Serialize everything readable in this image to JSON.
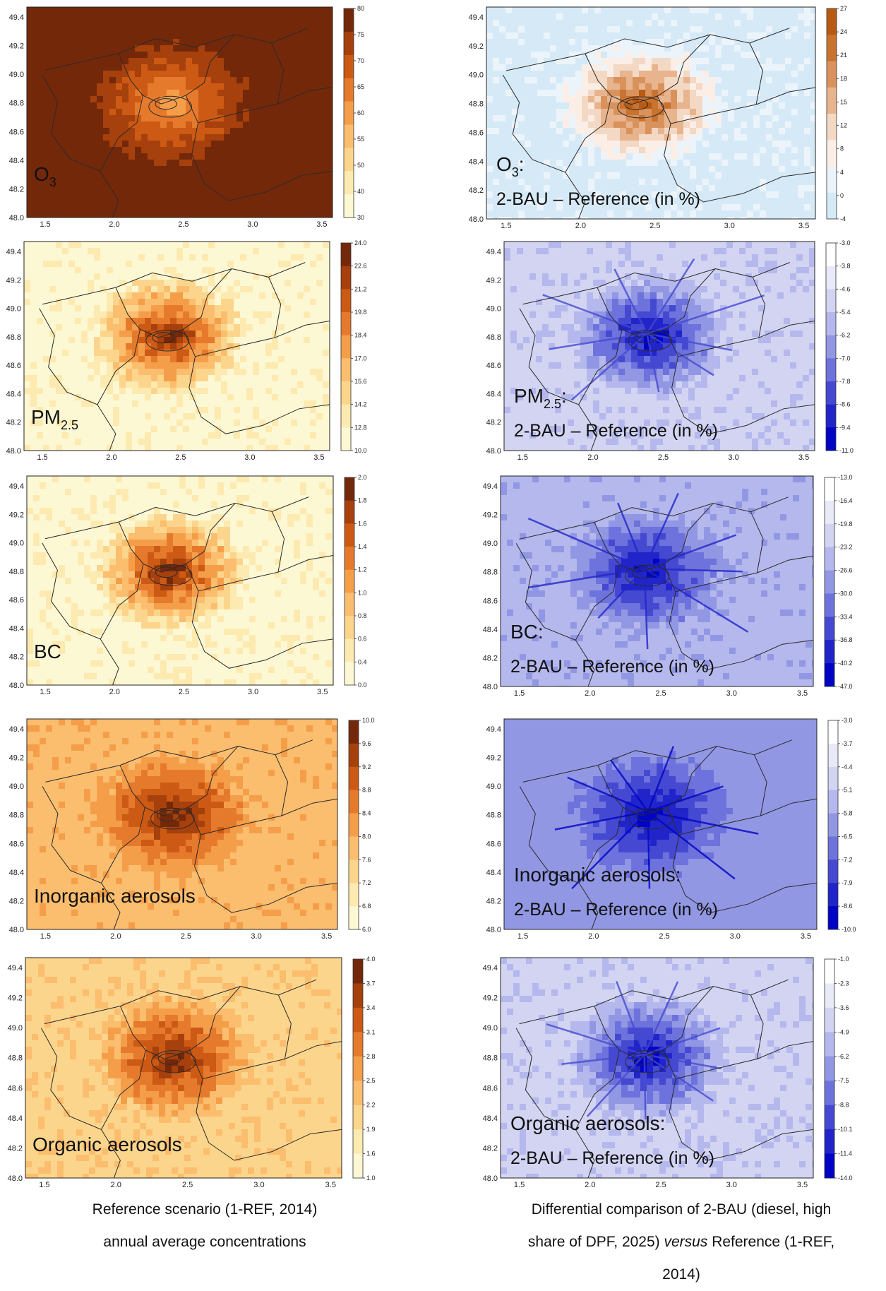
{
  "colors": {
    "oranges": [
      "#fdf8d4",
      "#fdeab0",
      "#fcd58c",
      "#fbbd6e",
      "#f59e4a",
      "#e67a2c",
      "#cc5a14",
      "#a6400c",
      "#74280a"
    ],
    "blues": [
      "#ffffff",
      "#e9eaf8",
      "#d2d4f2",
      "#b5b8ec",
      "#9297e4",
      "#6d72dc",
      "#4549d2",
      "#2125c9",
      "#0004c4"
    ],
    "o3diff": [
      "#d6e9f7",
      "#ecf4fb",
      "#fbeee6",
      "#f3d8c4",
      "#e7b48d",
      "#d9925c",
      "#c8732f",
      "#b85a12"
    ],
    "map_border": "#2a2a2a",
    "label_yellow": "#f2e400"
  },
  "panels": [
    {
      "id": "o3-ref",
      "ramp": "oranges",
      "base": 8,
      "hot": "light",
      "label": [
        "O",
        "3"
      ],
      "label_style": "sub_yellow",
      "xticks": [
        "1.5",
        "2.0",
        "2.5",
        "3.0",
        "3.5"
      ],
      "yticks": [
        "49.4",
        "49.2",
        "49.0",
        "48.8",
        "48.6",
        "48.4",
        "48.2",
        "48.0"
      ],
      "cbar_ticks": [
        "80",
        "75",
        "70",
        "65",
        "60",
        "55",
        "50",
        "40",
        "30"
      ],
      "cbar_dir": "dark_top"
    },
    {
      "id": "o3-diff",
      "ramp": "o3diff",
      "base": 0,
      "hot": "dark",
      "label": [
        "O",
        "3",
        ":"
      ],
      "label2": "2-BAU – Reference (in %)",
      "label_style": "sub_black",
      "xticks": [
        "1.5",
        "2.0",
        "2.5",
        "3.0",
        "3.5"
      ],
      "yticks": [
        "49.4",
        "49.2",
        "49.0",
        "48.8",
        "48.6",
        "48.4",
        "48.2",
        "48.0"
      ],
      "cbar_ticks": [
        "27",
        "24",
        "21",
        "18",
        "15",
        "12",
        "8",
        "4",
        "0",
        "-4"
      ],
      "cbar_dir": "dark_top"
    },
    {
      "id": "pm25-ref",
      "ramp": "oranges",
      "base": 0,
      "hot": "dark",
      "label": [
        "PM",
        "2.5"
      ],
      "label_style": "sub_black",
      "xticks": [
        "1.5",
        "2.0",
        "2.5",
        "3.0",
        "3.5"
      ],
      "yticks": [
        "49.4",
        "49.2",
        "49.0",
        "48.8",
        "48.6",
        "48.4",
        "48.2",
        "48.0"
      ],
      "cbar_ticks": [
        "24.0",
        "22.6",
        "21.2",
        "19.8",
        "18.4",
        "17.0",
        "15.6",
        "14.2",
        "12.8",
        "10.0"
      ],
      "cbar_dir": "dark_top"
    },
    {
      "id": "pm25-diff",
      "ramp": "blues",
      "base": 2,
      "hot": "dark",
      "label": [
        "PM",
        "2.5",
        ":"
      ],
      "label2": "2-BAU – Reference (in %)",
      "label_style": "sub_black",
      "xticks": [
        "1.5",
        "2.0",
        "2.5",
        "3.0",
        "3.5"
      ],
      "yticks": [
        "49.4",
        "49.2",
        "49.0",
        "48.8",
        "48.6",
        "48.4",
        "48.2",
        "48.0"
      ],
      "cbar_ticks": [
        "-3.0",
        "-3.8",
        "-4.6",
        "-5.4",
        "-6.2",
        "-7.0",
        "-7.8",
        "-8.6",
        "-9.4",
        "-11.0"
      ],
      "cbar_dir": "light_top"
    },
    {
      "id": "bc-ref",
      "ramp": "oranges",
      "base": 0,
      "hot": "dark",
      "label": [
        "BC"
      ],
      "label_style": "plain",
      "xticks": [
        "1.5",
        "2.0",
        "2.5",
        "3.0",
        "3.5"
      ],
      "yticks": [
        "49.4",
        "49.2",
        "49.0",
        "48.8",
        "48.6",
        "48.4",
        "48.2",
        "48.0"
      ],
      "cbar_ticks": [
        "2.0",
        "1.8",
        "1.6",
        "1.4",
        "1.2",
        "1.0",
        "0.8",
        "0.6",
        "0.4",
        "0.0"
      ],
      "cbar_dir": "dark_top"
    },
    {
      "id": "bc-diff",
      "ramp": "blues",
      "base": 3,
      "hot": "dark",
      "label": [
        "BC:"
      ],
      "label2": "2-BAU – Reference (in %)",
      "label_style": "plain",
      "xticks": [
        "1.5",
        "2.0",
        "2.5",
        "3.0",
        "3.5"
      ],
      "yticks": [
        "49.4",
        "49.2",
        "49.0",
        "48.8",
        "48.6",
        "48.4",
        "48.2",
        "48.0"
      ],
      "cbar_ticks": [
        "-13.0",
        "-16.4",
        "-19.8",
        "-23.2",
        "-26.6",
        "-30.0",
        "-33.4",
        "-36.8",
        "-40.2",
        "-47.0"
      ],
      "cbar_dir": "light_top"
    },
    {
      "id": "inorg-ref",
      "ramp": "oranges",
      "base": 3,
      "hot": "dark",
      "label": [
        "Inorganic aerosols"
      ],
      "label_style": "plain",
      "xticks": [
        "1.5",
        "2.0",
        "2.5",
        "3.0",
        "3.5"
      ],
      "yticks": [
        "49.4",
        "49.2",
        "49.0",
        "48.8",
        "48.6",
        "48.4",
        "48.2",
        "48.0"
      ],
      "cbar_ticks": [
        "10.0",
        "9.6",
        "9.2",
        "8.8",
        "8.4",
        "8.0",
        "7.6",
        "7.2",
        "6.8",
        "6.0"
      ],
      "cbar_dir": "dark_top"
    },
    {
      "id": "inorg-diff",
      "ramp": "blues",
      "base": 4,
      "hot": "dark",
      "label": [
        "Inorganic aerosols:"
      ],
      "label2": "2-BAU – Reference (in %)",
      "label_style": "plain",
      "xticks": [
        "1.5",
        "2.0",
        "2.5",
        "3.0",
        "3.5"
      ],
      "yticks": [
        "49.4",
        "49.2",
        "49.0",
        "48.8",
        "48.6",
        "48.4",
        "48.2",
        "48.0"
      ],
      "cbar_ticks": [
        "-3.0",
        "-3.7",
        "-4.4",
        "-5.1",
        "-5.8",
        "-6.5",
        "-7.2",
        "-7.9",
        "-8.6",
        "-10.0"
      ],
      "cbar_dir": "light_top"
    },
    {
      "id": "org-ref",
      "ramp": "oranges",
      "base": 2,
      "hot": "dark",
      "label": [
        "Organic aerosols"
      ],
      "label_style": "plain",
      "xticks": [
        "1.5",
        "2.0",
        "2.5",
        "3.0",
        "3.5"
      ],
      "yticks": [
        "49.4",
        "49.2",
        "49.0",
        "48.8",
        "48.6",
        "48.4",
        "48.2",
        "48.0"
      ],
      "cbar_ticks": [
        "4.0",
        "3.7",
        "3.4",
        "3.1",
        "2.8",
        "2.5",
        "2.2",
        "1.9",
        "1.6",
        "1.0"
      ],
      "cbar_dir": "dark_top"
    },
    {
      "id": "org-diff",
      "ramp": "blues",
      "base": 2,
      "hot": "dark",
      "label": [
        "Organic aerosols:"
      ],
      "label2": "2-BAU – Reference (in %)",
      "label_style": "plain",
      "xticks": [
        "1.5",
        "2.0",
        "2.5",
        "3.0",
        "3.5"
      ],
      "yticks": [
        "49.4",
        "49.2",
        "49.0",
        "48.8",
        "48.6",
        "48.4",
        "48.2",
        "48.0"
      ],
      "cbar_ticks": [
        "-1.0",
        "-2.3",
        "-3.6",
        "-4.9",
        "-6.2",
        "-7.5",
        "-8.8",
        "-10.1",
        "-11.4",
        "-14.0"
      ],
      "cbar_dir": "light_top"
    }
  ],
  "captions": {
    "left_line1": "Reference scenario (1-REF, 2014)",
    "left_line2": "annual average concentrations",
    "right_line1": "Differential comparison of 2-BAU (diesel, high",
    "right_line2a": "share of DPF, 2025) ",
    "right_line2_italic": "versus",
    "right_line2b": " Reference (1-REF,",
    "right_line3": "2014)"
  }
}
